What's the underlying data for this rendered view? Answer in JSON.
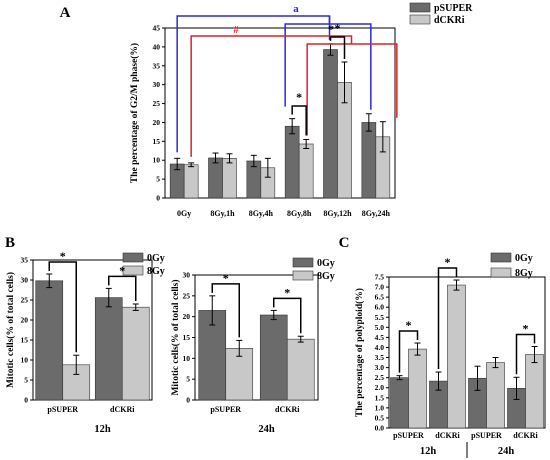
{
  "colors": {
    "pSUPER": "#6b6b6b",
    "dCKRi": "#c8c8c8",
    "Gy0": "#6b6b6b",
    "Gy8": "#c8c8c8",
    "bracket_blue": "#2a2ad6",
    "bracket_red": "#e0202a",
    "bracket_black": "#000000"
  },
  "chart_data": [
    {
      "id": "A",
      "panel_label": "A",
      "type": "bar",
      "ylabel": "The percentage of G2/M phase(%)",
      "xlabel": "",
      "ylim": [
        0,
        45
      ],
      "yticks": [
        0,
        5,
        10,
        15,
        20,
        25,
        30,
        35,
        40,
        45
      ],
      "categories": [
        "0Gy",
        "8Gy,1h",
        "8Gy,4h",
        "8Gy,8h",
        "8Gy,12h",
        "8Gy,24h"
      ],
      "legend": [
        "pSUPER",
        "dCKRi"
      ],
      "legend_position": "top-right",
      "series": [
        {
          "name": "pSUPER",
          "values": [
            9.0,
            10.6,
            9.8,
            19.0,
            39.3,
            20.0
          ],
          "errors": [
            1.5,
            1.3,
            1.5,
            2.0,
            1.5,
            2.3
          ]
        },
        {
          "name": "dCKRi",
          "values": [
            8.8,
            10.5,
            8.0,
            14.3,
            30.6,
            16.2
          ],
          "errors": [
            0.5,
            1.2,
            2.5,
            1.2,
            5.4,
            4.0
          ]
        }
      ],
      "annotations": [
        "a",
        "#",
        "*",
        "*",
        "*"
      ]
    },
    {
      "id": "B1",
      "panel_label": "B",
      "type": "bar",
      "ylabel": "Mitotic cells(% of total cells)",
      "xlabel": "12h",
      "ylim": [
        0,
        35
      ],
      "yticks": [
        0,
        5,
        10,
        15,
        20,
        25,
        30,
        35
      ],
      "categories": [
        "pSUPER",
        "dCKRi"
      ],
      "legend": [
        "0Gy",
        "8Gy"
      ],
      "legend_position": "top-right",
      "series": [
        {
          "name": "0Gy",
          "values": [
            29.8,
            25.6
          ],
          "errors": [
            1.7,
            2.3
          ]
        },
        {
          "name": "8Gy",
          "values": [
            8.8,
            23.2
          ],
          "errors": [
            2.4,
            0.8
          ]
        }
      ],
      "annotations": [
        "*",
        "*"
      ]
    },
    {
      "id": "B2",
      "panel_label": "",
      "type": "bar",
      "ylabel": "Mitotic cells(% of total cells)",
      "xlabel": "24h",
      "ylim": [
        0,
        30
      ],
      "yticks": [
        0,
        5,
        10,
        15,
        20,
        25,
        30
      ],
      "categories": [
        "pSUPER",
        "dCKRi"
      ],
      "legend": [
        "0Gy",
        "8Gy"
      ],
      "legend_position": "top-right",
      "series": [
        {
          "name": "0Gy",
          "values": [
            21.5,
            20.4
          ],
          "errors": [
            3.5,
            1.1
          ]
        },
        {
          "name": "8Gy",
          "values": [
            12.4,
            14.6
          ],
          "errors": [
            1.9,
            0.7
          ]
        }
      ],
      "annotations": [
        "*",
        "*"
      ]
    },
    {
      "id": "C",
      "panel_label": "C",
      "type": "bar",
      "ylabel": "The percentage of polyploid(%)",
      "xlabel": "",
      "ylim": [
        0,
        7.5
      ],
      "yticks": [
        0.0,
        0.5,
        1.0,
        1.5,
        2.0,
        2.5,
        3.0,
        3.5,
        4.0,
        4.5,
        5.0,
        5.5,
        6.0,
        6.5,
        7.0,
        7.5
      ],
      "categories": [
        "pSUPER",
        "dCKRi",
        "pSUPER",
        "dCKRi"
      ],
      "groups": [
        "12h",
        "24h"
      ],
      "legend": [
        "0Gy",
        "8Gy"
      ],
      "legend_position": "top-right",
      "series": [
        {
          "name": "0Gy",
          "values": [
            2.5,
            2.33,
            2.47,
            1.97
          ],
          "errors": [
            0.1,
            0.45,
            0.6,
            0.55
          ]
        },
        {
          "name": "8Gy",
          "values": [
            3.92,
            7.1,
            3.25,
            3.65
          ],
          "errors": [
            0.3,
            0.25,
            0.25,
            0.4
          ]
        }
      ],
      "annotations": [
        "*",
        "*",
        "*"
      ]
    }
  ]
}
